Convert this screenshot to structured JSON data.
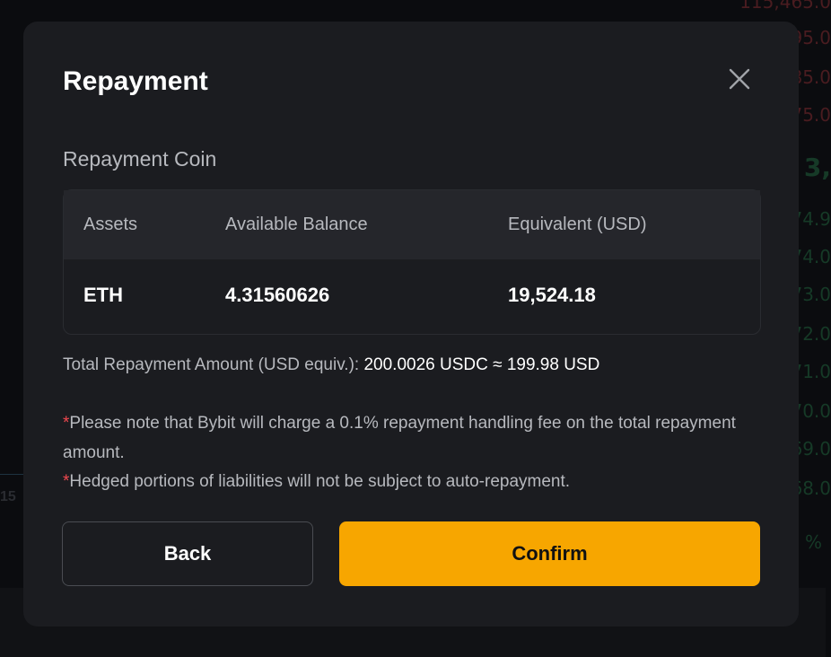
{
  "background": {
    "right_prices": [
      "115,465.0",
      "95.0",
      "85.0",
      "75.0",
      "3,",
      "74.9",
      "74.0",
      "73.0",
      "72.0",
      "71.0",
      "70.0",
      "69.0",
      "68.0",
      "%"
    ],
    "left_label": "15"
  },
  "modal": {
    "title": "Repayment",
    "close_icon": "close-icon",
    "section_label": "Repayment Coin",
    "table": {
      "headers": [
        "Assets",
        "Available Balance",
        "Equivalent (USD)"
      ],
      "rows": [
        [
          "ETH",
          "4.31560626",
          "19,524.18"
        ]
      ]
    },
    "total_label": "Total Repayment Amount (USD equiv.):",
    "total_value": "200.0026 USDC ≈ 199.98 USD",
    "notes": [
      {
        "star": "*",
        "text": "Please note that Bybit will charge a 0.1% repayment handling fee on the total repayment amount."
      },
      {
        "star": "*",
        "text": "Hedged portions of liabilities will not be subject to auto-repayment."
      }
    ],
    "back_label": "Back",
    "confirm_label": "Confirm",
    "colors": {
      "accent": "#f7a600",
      "asterisk": "#f0484f",
      "modal_bg": "#1b1c20"
    }
  }
}
